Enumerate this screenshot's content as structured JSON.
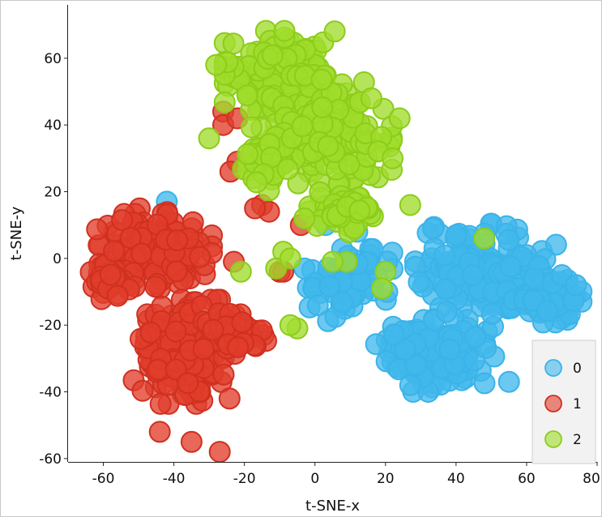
{
  "chart_data": {
    "type": "scatter",
    "title": "",
    "xlabel": "t-SNE-x",
    "ylabel": "t-SNE-y",
    "xlim": [
      -70,
      80
    ],
    "ylim": [
      -61,
      76
    ],
    "xticks": [
      -60,
      -40,
      -20,
      0,
      20,
      40,
      60,
      80
    ],
    "yticks": [
      -60,
      -40,
      -20,
      0,
      20,
      40,
      60
    ],
    "xtick_labels": [
      "-60",
      "-40",
      "-20",
      "0",
      "20",
      "40",
      "60",
      "80"
    ],
    "ytick_labels": [
      "-60",
      "-40",
      "-20",
      "0",
      "20",
      "40",
      "60"
    ],
    "grid": false,
    "legend_position": "bottom-right",
    "series": [
      {
        "name": "0",
        "color": "#3ab3e8",
        "fill": "#41b8ec",
        "clusters": [
          {
            "cx": 50,
            "cy": -4,
            "rx": 18,
            "ry": 12,
            "n": 160
          },
          {
            "cx": 34,
            "cy": -28,
            "rx": 14,
            "ry": 10,
            "n": 130
          },
          {
            "cx": 10,
            "cy": -8,
            "rx": 10,
            "ry": 9,
            "n": 70
          },
          {
            "cx": 66,
            "cy": -12,
            "rx": 8,
            "ry": 6,
            "n": 50
          }
        ],
        "points": [
          {
            "x": 3,
            "y": 10
          },
          {
            "x": 12,
            "y": 8
          },
          {
            "x": 40,
            "y": 7
          },
          {
            "x": 70,
            "y": -5
          },
          {
            "x": 74,
            "y": -8
          },
          {
            "x": -3,
            "y": -3
          },
          {
            "x": 27,
            "y": -38
          },
          {
            "x": 55,
            "y": -37
          },
          {
            "x": -42,
            "y": 17
          }
        ]
      },
      {
        "name": "1",
        "color": "#cf3020",
        "fill": "#e23e2b",
        "clusters": [
          {
            "cx": -46,
            "cy": 3,
            "rx": 14,
            "ry": 10,
            "n": 150
          },
          {
            "cx": -37,
            "cy": -28,
            "rx": 12,
            "ry": 13,
            "n": 170
          },
          {
            "cx": -58,
            "cy": -5,
            "rx": 6,
            "ry": 6,
            "n": 40
          },
          {
            "cx": -22,
            "cy": -22,
            "rx": 8,
            "ry": 5,
            "n": 50
          }
        ],
        "points": [
          {
            "x": -26,
            "y": 44
          },
          {
            "x": -26,
            "y": 40
          },
          {
            "x": -22,
            "y": 42
          },
          {
            "x": -22,
            "y": 29
          },
          {
            "x": -24,
            "y": 26
          },
          {
            "x": -15,
            "y": 16
          },
          {
            "x": -13,
            "y": 14
          },
          {
            "x": -17,
            "y": 15
          },
          {
            "x": -4,
            "y": 10
          },
          {
            "x": -23,
            "y": -1
          },
          {
            "x": -10,
            "y": -4
          },
          {
            "x": -9,
            "y": -4
          },
          {
            "x": -27,
            "y": -58
          },
          {
            "x": -35,
            "y": -55
          },
          {
            "x": -44,
            "y": -52
          }
        ]
      },
      {
        "name": "2",
        "color": "#8ccc1a",
        "fill": "#a0dc2c",
        "clusters": [
          {
            "cx": -10,
            "cy": 55,
            "rx": 13,
            "ry": 11,
            "n": 140
          },
          {
            "cx": 5,
            "cy": 38,
            "rx": 14,
            "ry": 14,
            "n": 150
          },
          {
            "cx": -12,
            "cy": 30,
            "rx": 7,
            "ry": 8,
            "n": 50
          },
          {
            "cx": 8,
            "cy": 15,
            "rx": 8,
            "ry": 6,
            "n": 50
          }
        ],
        "points": [
          {
            "x": -30,
            "y": 36
          },
          {
            "x": -28,
            "y": 58
          },
          {
            "x": 16,
            "y": 48
          },
          {
            "x": 24,
            "y": 42
          },
          {
            "x": 22,
            "y": 30
          },
          {
            "x": 27,
            "y": 16
          },
          {
            "x": 48,
            "y": 6
          },
          {
            "x": 20,
            "y": -4
          },
          {
            "x": 19,
            "y": -9
          },
          {
            "x": 9,
            "y": -1
          },
          {
            "x": 5,
            "y": -1
          },
          {
            "x": -9,
            "y": 2
          },
          {
            "x": -11,
            "y": -3
          },
          {
            "x": -7,
            "y": 0
          },
          {
            "x": -21,
            "y": -4
          },
          {
            "x": -5,
            "y": -21
          },
          {
            "x": -7,
            "y": -20
          },
          {
            "x": -3,
            "y": 12
          }
        ]
      }
    ]
  }
}
